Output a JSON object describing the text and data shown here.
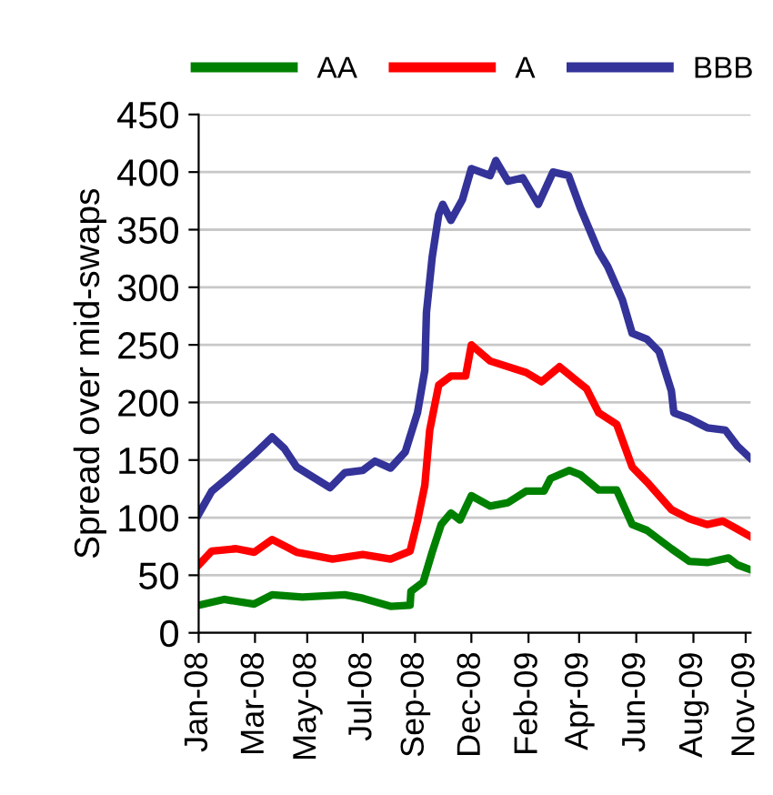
{
  "chart_data": {
    "type": "line",
    "ylabel": "Spread over mid-swaps",
    "legend": "top",
    "grid": "y",
    "marker": "none",
    "line_style": "solid",
    "ylim": [
      0,
      450
    ],
    "yticks": [
      0,
      50,
      100,
      150,
      200,
      250,
      300,
      350,
      400,
      450
    ],
    "xlim": [
      "2008-01-02",
      "2009-11-08"
    ],
    "xticks": [
      {
        "value": "2008-01-02",
        "label": "Jan-08"
      },
      {
        "value": "2008-03-11",
        "label": "Mar-08"
      },
      {
        "value": "2008-05-14",
        "label": "May-08"
      },
      {
        "value": "2008-07-21",
        "label": "Jul-08"
      },
      {
        "value": "2008-09-23",
        "label": "Sep-08"
      },
      {
        "value": "2008-12-01",
        "label": "Dec-08"
      },
      {
        "value": "2009-02-09",
        "label": "Feb-09"
      },
      {
        "value": "2009-04-12",
        "label": "Apr-09"
      },
      {
        "value": "2009-06-21",
        "label": "Jun-09"
      },
      {
        "value": "2009-08-30",
        "label": "Aug-09"
      },
      {
        "value": "2009-11-02",
        "label": "Nov-09"
      }
    ],
    "series": [
      {
        "name": "AA",
        "color": "#008000",
        "x": [
          "2008-01-02",
          "2008-02-02",
          "2008-03-10",
          "2008-04-01",
          "2008-05-08",
          "2008-06-29",
          "2008-07-21",
          "2008-08-24",
          "2008-09-17",
          "2008-09-18",
          "2008-10-03",
          "2008-10-14",
          "2008-10-25",
          "2008-11-06",
          "2008-11-17",
          "2008-12-01",
          "2008-12-24",
          "2009-01-15",
          "2009-02-06",
          "2009-02-28",
          "2009-03-08",
          "2009-03-31",
          "2009-04-14",
          "2009-05-06",
          "2009-05-28",
          "2009-06-16",
          "2009-07-04",
          "2009-08-03",
          "2009-08-25",
          "2009-09-16",
          "2009-10-12",
          "2009-10-23",
          "2009-11-07"
        ],
        "values": [
          24,
          29,
          25,
          33,
          31,
          33,
          30,
          23,
          24,
          36,
          44,
          70,
          94,
          104,
          98,
          119,
          110,
          113,
          123,
          123,
          134,
          141,
          137,
          124,
          124,
          94,
          89,
          73,
          62,
          61,
          65,
          59,
          55
        ]
      },
      {
        "name": "A",
        "color": "#ff0000",
        "x": [
          "2008-01-02",
          "2008-01-18",
          "2008-02-17",
          "2008-03-10",
          "2008-04-01",
          "2008-05-01",
          "2008-06-14",
          "2008-07-21",
          "2008-08-24",
          "2008-09-17",
          "2008-09-26",
          "2008-10-05",
          "2008-10-11",
          "2008-10-22",
          "2008-11-06",
          "2008-11-24",
          "2008-12-01",
          "2008-12-24",
          "2009-02-06",
          "2009-02-25",
          "2009-03-19",
          "2009-04-14",
          "2009-04-21",
          "2009-05-06",
          "2009-05-28",
          "2009-06-16",
          "2009-07-04",
          "2009-08-03",
          "2009-08-25",
          "2009-09-16",
          "2009-10-05",
          "2009-10-23",
          "2009-11-07"
        ],
        "values": [
          59,
          71,
          73,
          70,
          81,
          70,
          64,
          68,
          64,
          71,
          97,
          128,
          176,
          215,
          223,
          223,
          250,
          236,
          226,
          218,
          231,
          216,
          212,
          191,
          181,
          144,
          131,
          107,
          99,
          94,
          97,
          90,
          84
        ]
      },
      {
        "name": "BBB",
        "color": "#333399",
        "x": [
          "2008-01-02",
          "2008-01-18",
          "2008-02-09",
          "2008-03-10",
          "2008-04-01",
          "2008-04-16",
          "2008-05-01",
          "2008-06-11",
          "2008-06-29",
          "2008-07-21",
          "2008-08-05",
          "2008-08-24",
          "2008-09-11",
          "2008-09-26",
          "2008-10-05",
          "2008-10-07",
          "2008-10-14",
          "2008-10-22",
          "2008-10-27",
          "2008-11-06",
          "2008-11-20",
          "2008-12-01",
          "2008-12-24",
          "2008-12-31",
          "2009-01-15",
          "2009-02-02",
          "2009-02-21",
          "2009-03-11",
          "2009-03-30",
          "2009-04-14",
          "2009-05-06",
          "2009-05-17",
          "2009-06-04",
          "2009-06-16",
          "2009-07-04",
          "2009-07-19",
          "2009-08-03",
          "2009-08-06",
          "2009-08-25",
          "2009-09-16",
          "2009-10-08",
          "2009-10-23",
          "2009-11-07"
        ],
        "values": [
          103,
          123,
          136,
          155,
          170,
          160,
          144,
          126,
          139,
          141,
          149,
          143,
          157,
          191,
          228,
          278,
          326,
          363,
          372,
          358,
          376,
          403,
          397,
          410,
          392,
          395,
          372,
          400,
          397,
          368,
          331,
          318,
          289,
          260,
          255,
          244,
          210,
          191,
          186,
          178,
          176,
          162,
          152
        ]
      }
    ]
  }
}
